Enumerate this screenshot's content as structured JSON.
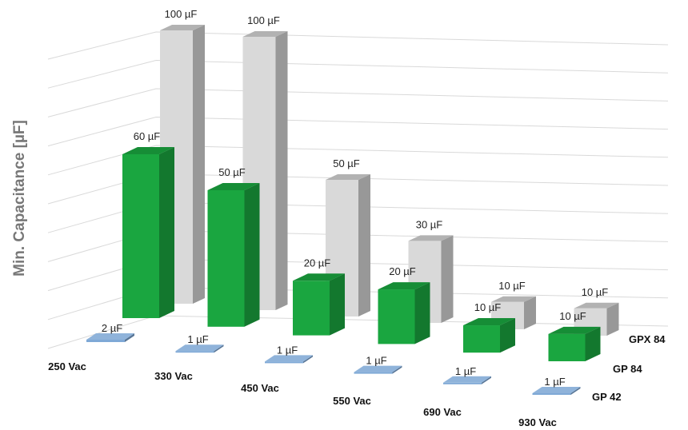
{
  "chart_data": {
    "type": "bar",
    "subtype": "3d-clustered-depth",
    "title": "",
    "ylabel": "Min. Capacitance [µF]",
    "xlabel": "",
    "ylim": [
      0,
      110
    ],
    "grid": true,
    "categories": [
      "250 Vac",
      "330 Vac",
      "450 Vac",
      "550 Vac",
      "690 Vac",
      "930 Vac"
    ],
    "series": [
      {
        "name": "GPX 84",
        "color": "#d9d9d9",
        "values": [
          100,
          100,
          50,
          30,
          10,
          10
        ],
        "labels": [
          "100 µF",
          "100 µF",
          "50 µF",
          "30 µF",
          "10 µF",
          "10 µF"
        ]
      },
      {
        "name": "GP 84",
        "color": "#1aa640",
        "values": [
          60,
          50,
          20,
          20,
          10,
          10
        ],
        "labels": [
          "60 µF",
          "50 µF",
          "20 µF",
          "20 µF",
          "10 µF",
          "10 µF"
        ]
      },
      {
        "name": "GP 42",
        "color": "#7fa9d6",
        "values": [
          2,
          1,
          1,
          1,
          1,
          1
        ],
        "labels": [
          "2 µF",
          "1 µF",
          "1 µF",
          "1 µF",
          "1 µF",
          "1 µF"
        ]
      }
    ]
  }
}
